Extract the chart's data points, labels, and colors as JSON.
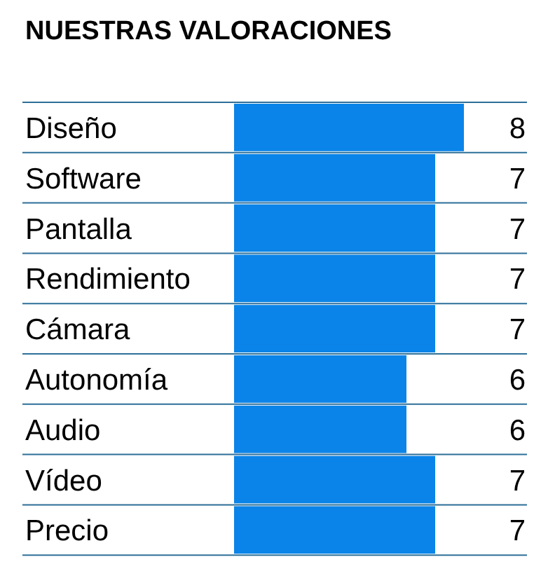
{
  "chart_data": {
    "type": "bar",
    "orientation": "horizontal",
    "title": "NUESTRAS VALORACIONES",
    "categories": [
      "Diseño",
      "Software",
      "Pantalla",
      "Rendimiento",
      "Cámara",
      "Autonomía",
      "Audio",
      "Vídeo",
      "Precio"
    ],
    "values": [
      8,
      7,
      7,
      7,
      7,
      6,
      6,
      7,
      7
    ],
    "color": "#0a84e8",
    "data_labels": true,
    "grid": true
  }
}
